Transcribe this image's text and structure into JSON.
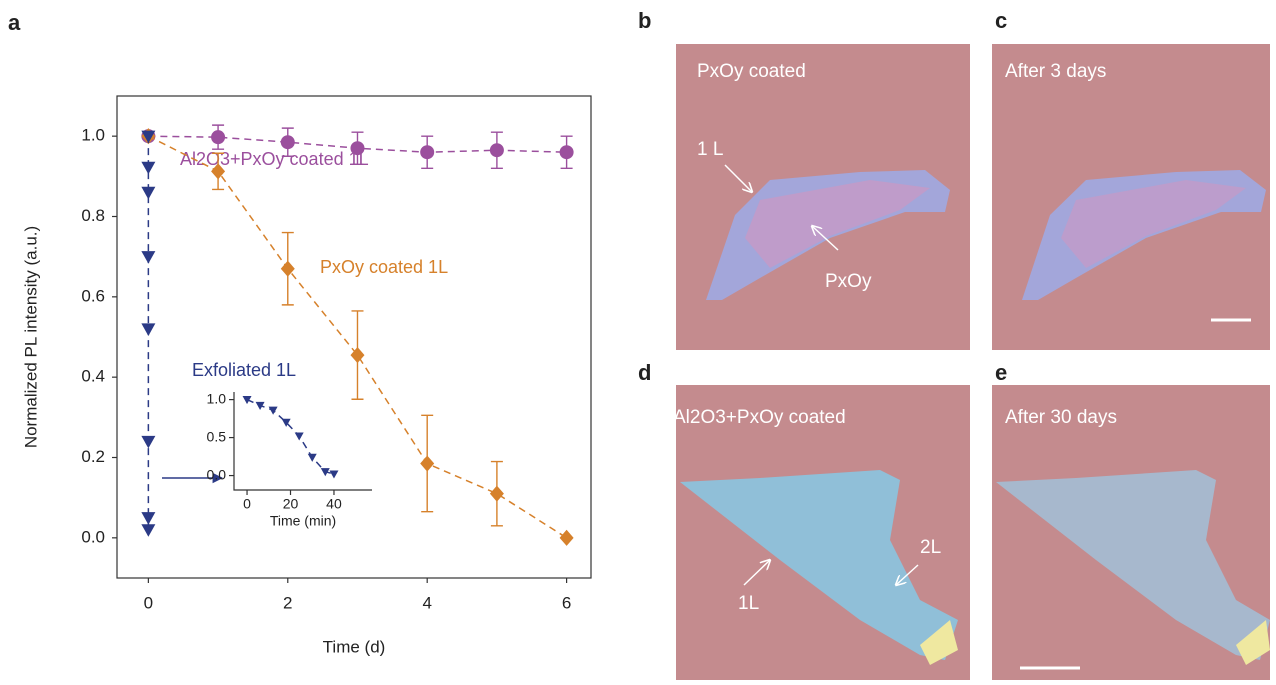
{
  "chart_data": [
    {
      "type": "scatter",
      "panel": "a",
      "xlabel": "Time (d)",
      "ylabel": "Normalized PL intensity (a.u.)",
      "xlim": [
        -0.45,
        6.35
      ],
      "ylim": [
        -0.1,
        1.1
      ],
      "xticks": [
        0,
        2,
        4,
        6
      ],
      "yticks": [
        {
          "value": 0,
          "label": "0.0"
        },
        0.2,
        0.4,
        0.6,
        0.8,
        {
          "value": 1,
          "label": "1.0"
        }
      ],
      "series": [
        {
          "name": "Al2O3+PxOy coated 1L",
          "color": "#9b4f9d",
          "marker": "circle",
          "linestyle": "dashed",
          "x": [
            0,
            1,
            2,
            3,
            4,
            5,
            6
          ],
          "values": [
            1.0,
            0.9975,
            0.985,
            0.97,
            0.96,
            0.965,
            0.96
          ],
          "errors": [
            null,
            0.03,
            0.035,
            0.04,
            0.04,
            0.045,
            0.04
          ]
        },
        {
          "name": "PxOy coated 1L",
          "color": "#d6812b",
          "marker": "diamond",
          "linestyle": "dashed",
          "x": [
            0,
            1,
            2,
            3,
            4,
            5,
            6
          ],
          "values": [
            1.0,
            0.9125,
            0.67,
            0.455,
            0.185,
            0.11,
            0.0
          ],
          "errors": [
            null,
            0.045,
            0.09,
            0.11,
            0.12,
            0.08,
            null
          ]
        },
        {
          "name": "Exfoliated 1L",
          "color": "#2b3a86",
          "marker": "triangle-down",
          "linestyle": "dashed",
          "x": [
            0,
            0,
            0,
            0,
            0,
            0,
            0,
            0
          ],
          "values": [
            1.0,
            0.9225,
            0.86,
            0.7,
            0.52,
            0.24,
            0.05,
            0.02
          ]
        }
      ]
    },
    {
      "type": "scatter",
      "xlabel": "Time (min)",
      "xlim": [
        -6,
        57.5
      ],
      "ylim": [
        -0.19,
        1.1
      ],
      "xticks": [
        0,
        20,
        40
      ],
      "yticks": [
        {
          "value": 0,
          "label": "0.0"
        },
        0.5,
        {
          "value": 1,
          "label": "1.0"
        }
      ],
      "series": [
        {
          "color": "#2b3a86",
          "marker": "triangle-down",
          "linestyle": "dashed",
          "x": [
            0,
            6,
            12,
            18,
            24,
            30,
            36,
            40
          ],
          "values": [
            1.0,
            0.9225,
            0.86,
            0.7,
            0.52,
            0.24,
            0.05,
            0.02
          ]
        }
      ]
    }
  ],
  "panels": [
    {
      "label": "b",
      "caption": "PxOy coated",
      "annotations": [
        "1 L",
        "PxOy"
      ]
    },
    {
      "label": "c",
      "caption": "After 3 days"
    },
    {
      "label": "d",
      "caption": "Al2O3+PxOy coated",
      "annotations": [
        "1L",
        "2L"
      ]
    },
    {
      "label": "e",
      "caption": "After 30 days"
    }
  ]
}
